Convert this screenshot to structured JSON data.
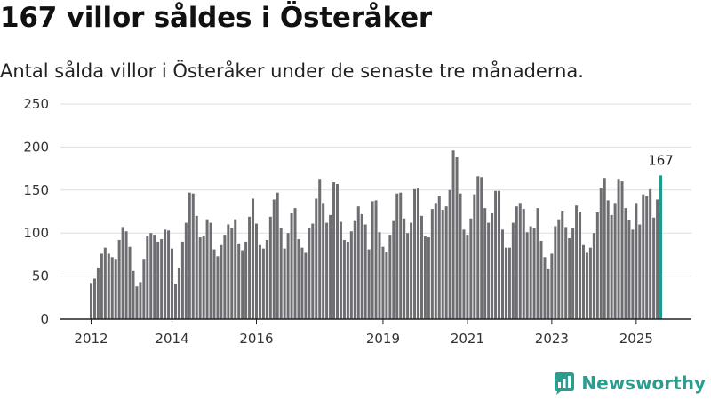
{
  "title": "167 villor såldes i Österåker",
  "subtitle": "Antal sålda villor i Österåker under de senaste tre månaderna.",
  "brand": {
    "name": "Newsworthy",
    "icon": "newsworthy-logo-icon"
  },
  "colors": {
    "bar": "#6e6d72",
    "highlight": "#1a9b8c",
    "grid": "#dddddd",
    "axis": "#222222",
    "brand": "#2a9d8f"
  },
  "chart_data": {
    "type": "bar",
    "title": "167 villor såldes i Österåker",
    "subtitle": "Antal sålda villor i Österåker under de senaste tre månaderna.",
    "xlabel": "",
    "ylabel": "",
    "ylim": [
      0,
      250
    ],
    "yticks": [
      0,
      50,
      100,
      150,
      200,
      250
    ],
    "grid": true,
    "x_tick_labels": [
      {
        "label": "2012",
        "index": 0
      },
      {
        "label": "2014",
        "index": 23
      },
      {
        "label": "2016",
        "index": 47
      },
      {
        "label": "2019",
        "index": 83
      },
      {
        "label": "2021",
        "index": 107
      },
      {
        "label": "2023",
        "index": 131
      },
      {
        "label": "2025",
        "index": 155
      }
    ],
    "values": [
      42,
      47,
      60,
      76,
      83,
      76,
      72,
      70,
      92,
      107,
      102,
      84,
      56,
      38,
      43,
      70,
      96,
      100,
      98,
      90,
      93,
      104,
      103,
      82,
      41,
      60,
      90,
      112,
      147,
      146,
      120,
      95,
      97,
      116,
      112,
      81,
      73,
      86,
      98,
      110,
      106,
      116,
      88,
      80,
      90,
      119,
      140,
      111,
      86,
      82,
      92,
      119,
      139,
      147,
      106,
      82,
      100,
      123,
      129,
      93,
      83,
      77,
      106,
      111,
      140,
      163,
      135,
      112,
      121,
      159,
      157,
      113,
      92,
      90,
      102,
      114,
      131,
      122,
      110,
      81,
      137,
      138,
      101,
      84,
      78,
      98,
      114,
      146,
      147,
      117,
      100,
      112,
      151,
      152,
      120,
      96,
      95,
      128,
      135,
      143,
      127,
      131,
      150,
      196,
      188,
      146,
      104,
      98,
      117,
      145,
      166,
      165,
      129,
      112,
      123,
      149,
      149,
      104,
      83,
      83,
      112,
      131,
      135,
      128,
      101,
      108,
      106,
      129,
      91,
      72,
      58,
      76,
      108,
      116,
      126,
      107,
      94,
      106,
      132,
      125,
      86,
      77,
      83,
      100,
      124,
      152,
      164,
      138,
      121,
      135,
      163,
      160,
      129,
      115,
      104,
      135,
      110,
      145,
      143,
      151,
      118,
      139,
      167
    ],
    "highlight_last": true,
    "annotation": "167"
  }
}
